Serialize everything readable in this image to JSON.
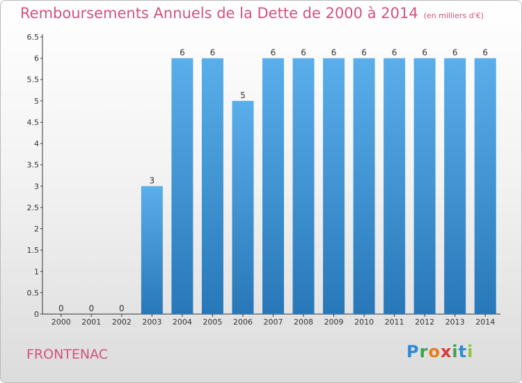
{
  "header": {
    "title": "Remboursements Annuels de la Dette de 2000 à 2014",
    "subtitle": "(en milliers d'€)"
  },
  "footer": {
    "commune": "FRONTENAC",
    "logo": [
      "P",
      "r",
      "o",
      "x",
      "i",
      "t",
      "i"
    ],
    "logo_colors": [
      "#2d8ad8",
      "#3aa24a",
      "#e87c1e",
      "#d93a3a",
      "#3aa24a",
      "#2d8ad8",
      "#8cc63f"
    ]
  },
  "colors": {
    "bar_top": "#5aaeea",
    "bar_bottom": "#2878b9",
    "axis": "#333333",
    "grid": "#dddddd"
  },
  "chart_data": {
    "type": "bar",
    "categories": [
      "2000",
      "2001",
      "2002",
      "2003",
      "2004",
      "2005",
      "2006",
      "2007",
      "2008",
      "2009",
      "2010",
      "2011",
      "2012",
      "2013",
      "2014"
    ],
    "values": [
      0,
      0,
      0,
      3,
      6,
      6,
      5,
      6,
      6,
      6,
      6,
      6,
      6,
      6,
      6
    ],
    "data_labels": [
      "0",
      "0",
      "0",
      "3",
      "6",
      "6",
      "5",
      "6",
      "6",
      "6",
      "6",
      "6",
      "6",
      "6",
      "6"
    ],
    "y_ticks": [
      "0",
      "0.5",
      "1",
      "1.5",
      "2",
      "2.5",
      "3",
      "3.5",
      "4",
      "4.5",
      "5",
      "5.5",
      "6",
      "6.5"
    ],
    "y_tick_values": [
      0,
      0.5,
      1,
      1.5,
      2,
      2.5,
      3,
      3.5,
      4,
      4.5,
      5,
      5.5,
      6,
      6.5
    ],
    "ylim": [
      0,
      6.5
    ],
    "grid": false,
    "legend": "none"
  }
}
